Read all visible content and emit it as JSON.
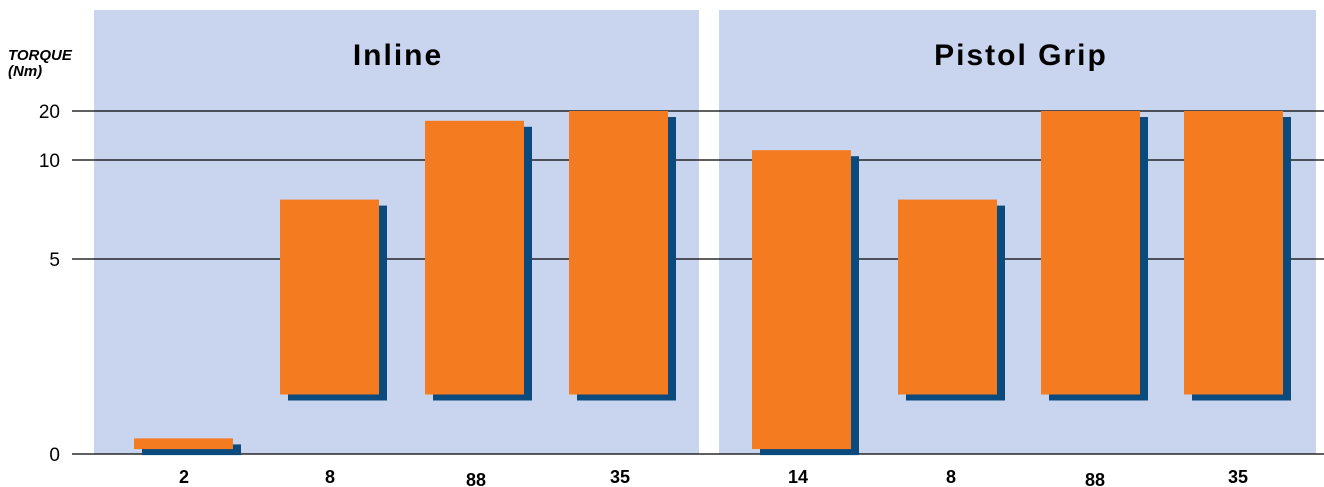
{
  "chart_data": {
    "type": "bar",
    "title": "",
    "ylabel": "TORQUE (Nm)",
    "ylabel_lines": [
      "TORQUE",
      "(Nm)"
    ],
    "y_scale": "nonlinear",
    "y_ticks": [
      0,
      5,
      10,
      20
    ],
    "ylim": [
      0,
      20
    ],
    "bar_style": "floating range bars (min to max torque)",
    "panels": [
      {
        "title": "Inline",
        "categories": [
          "2",
          "8",
          "88",
          "35"
        ],
        "ranges": [
          [
            0.1,
            0.4
          ],
          [
            1.5,
            8
          ],
          [
            1.5,
            18
          ],
          [
            1.5,
            20
          ]
        ]
      },
      {
        "title": "Pistol Grip",
        "categories": [
          "14",
          "8",
          "88",
          "35"
        ],
        "ranges": [
          [
            0.1,
            12
          ],
          [
            1.5,
            8
          ],
          [
            1.5,
            20
          ],
          [
            1.5,
            20
          ]
        ]
      }
    ],
    "colors": {
      "panel_background": "#c9d5ee",
      "bar": "#f47b20",
      "bar_shadow": "#0b4a7c",
      "grid": "#000000"
    },
    "grid": true
  }
}
